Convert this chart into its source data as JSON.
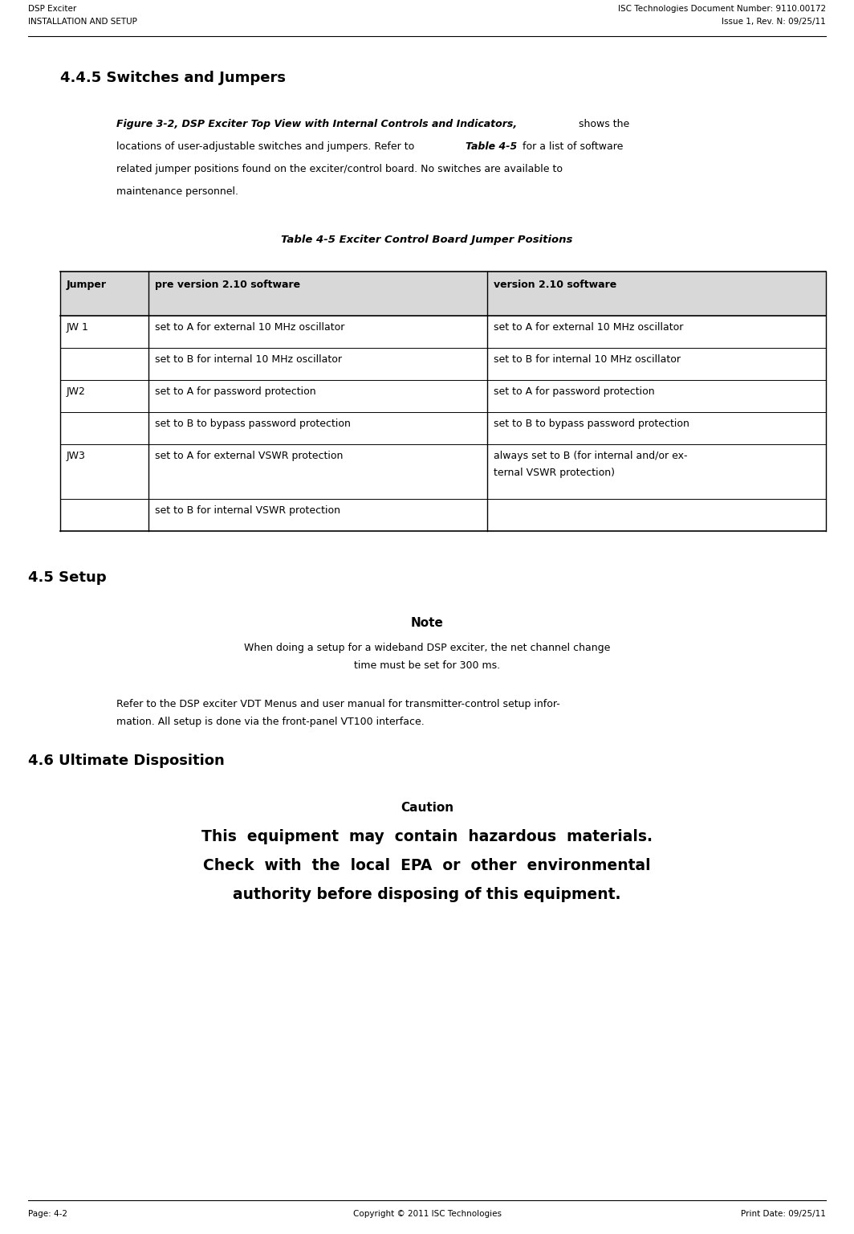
{
  "page_width": 10.64,
  "page_height": 15.36,
  "bg_color": "#ffffff",
  "header_left_line1": "DSP Exciter",
  "header_left_line2": "INSTALLATION AND SETUP",
  "header_right_line1": "ISC Technologies Document Number: 9110.00172",
  "header_right_line2": "Issue 1, Rev. N: 09/25/11",
  "footer_left": "Page: 4-2",
  "footer_center": "Copyright © 2011 ISC Technologies",
  "footer_right": "Print Date: 09/25/11",
  "section_title": "4.4.5 Switches and Jumpers",
  "table_caption": "Table 4-5 Exciter Control Board Jumper Positions",
  "table_headers": [
    "Jumper",
    "pre version 2.10 software",
    "version 2.10 software"
  ],
  "table_rows": [
    [
      "JW 1",
      "set to A for external 10 MHz oscillator",
      "set to A for external 10 MHz oscillator"
    ],
    [
      "",
      "set to B for internal 10 MHz oscillator",
      "set to B for internal 10 MHz oscillator"
    ],
    [
      "JW2",
      "set to A for password protection",
      "set to A for password protection"
    ],
    [
      "",
      "set to B to bypass password protection",
      "set to B to bypass password protection"
    ],
    [
      "JW3",
      "set to A for external VSWR protection",
      "always set to B (for internal and/or ex-\nternal VSWR protection)"
    ],
    [
      "",
      "set to B for internal VSWR protection",
      ""
    ]
  ],
  "setup_section_title": "4.5 Setup",
  "note_title": "Note",
  "note_line1": "When doing a setup for a wideband DSP exciter, the net channel change",
  "note_line2": "time must be set for 300 ms.",
  "setup_para_line1": "Refer to the DSP exciter VDT Menus and user manual for transmitter-control setup infor-",
  "setup_para_line2": "mation. All setup is done via the front-panel VT100 interface.",
  "disposition_section_title": "4.6 Ultimate Disposition",
  "caution_title": "Caution",
  "caution_line1": "This  equipment  may  contain  hazardous  materials.",
  "caution_line2": "Check  with  the  local  EPA  or  other  environmental",
  "caution_line3": "authority before disposing of this equipment.",
  "lm": 0.35,
  "rm": 0.35,
  "indent": 1.45
}
